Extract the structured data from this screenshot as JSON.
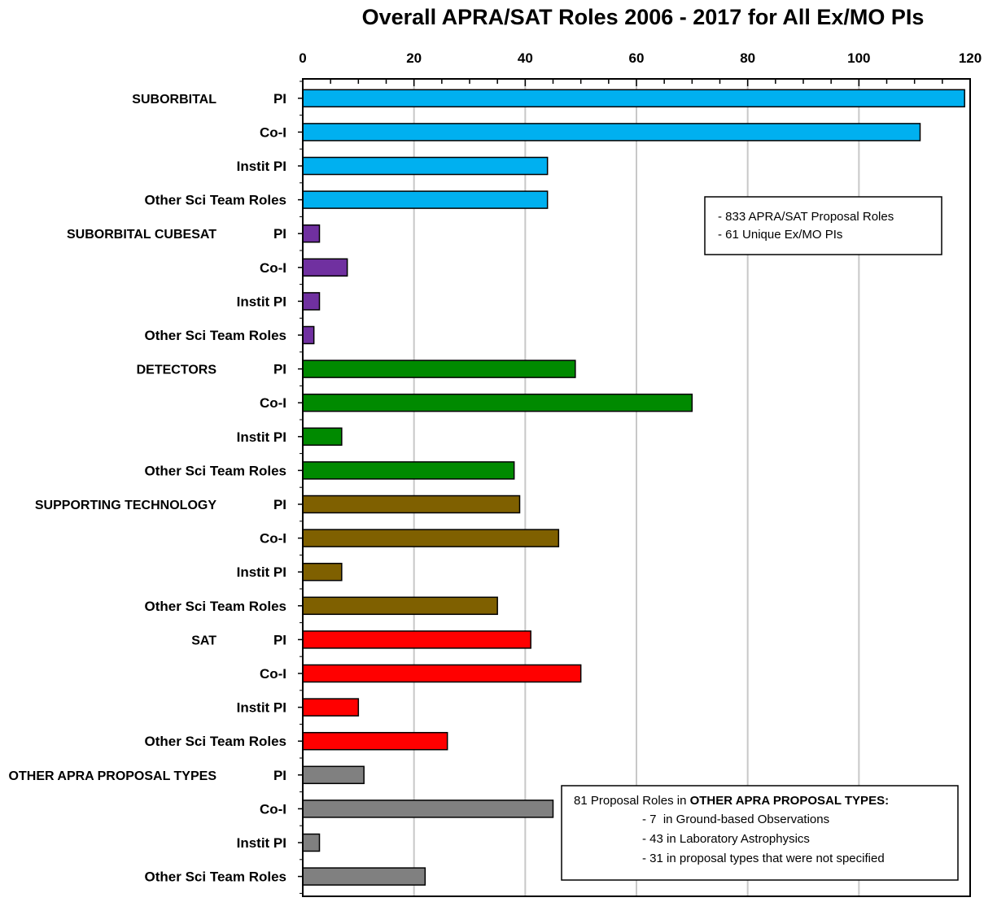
{
  "chart_data": {
    "type": "bar",
    "orientation": "horizontal",
    "title": "Overall APRA/SAT Roles 2006 - 2017 for All Ex/MO PIs",
    "xlim": [
      0,
      120
    ],
    "x_ticks": [
      "0",
      "20",
      "40",
      "60",
      "80",
      "100",
      "120"
    ],
    "grid": true,
    "groups": [
      {
        "name": "SUBORBITAL",
        "color": "#00b0f0"
      },
      {
        "name": "SUBORBITAL CUBESAT",
        "color": "#7030a0"
      },
      {
        "name": "DETECTORS",
        "color": "#008a00"
      },
      {
        "name": "SUPPORTING TECHNOLOGY",
        "color": "#7f6000"
      },
      {
        "name": "SAT",
        "color": "#ff0000"
      },
      {
        "name": "OTHER APRA PROPOSAL TYPES",
        "color": "#808080"
      }
    ],
    "roles": [
      "PI",
      "Co-I",
      "Instit PI",
      "Other Sci Team Roles"
    ],
    "bars": [
      {
        "group": 0,
        "role": "PI",
        "value": 119
      },
      {
        "group": 0,
        "role": "Co-I",
        "value": 111
      },
      {
        "group": 0,
        "role": "Instit PI",
        "value": 44
      },
      {
        "group": 0,
        "role": "Other Sci Team Roles",
        "value": 44
      },
      {
        "group": 1,
        "role": "PI",
        "value": 3
      },
      {
        "group": 1,
        "role": "Co-I",
        "value": 8
      },
      {
        "group": 1,
        "role": "Instit PI",
        "value": 3
      },
      {
        "group": 1,
        "role": "Other Sci Team Roles",
        "value": 2
      },
      {
        "group": 2,
        "role": "PI",
        "value": 49
      },
      {
        "group": 2,
        "role": "Co-I",
        "value": 70
      },
      {
        "group": 2,
        "role": "Instit PI",
        "value": 7
      },
      {
        "group": 2,
        "role": "Other Sci Team Roles",
        "value": 38
      },
      {
        "group": 3,
        "role": "PI",
        "value": 39
      },
      {
        "group": 3,
        "role": "Co-I",
        "value": 46
      },
      {
        "group": 3,
        "role": "Instit PI",
        "value": 7
      },
      {
        "group": 3,
        "role": "Other Sci Team Roles",
        "value": 35
      },
      {
        "group": 4,
        "role": "PI",
        "value": 41
      },
      {
        "group": 4,
        "role": "Co-I",
        "value": 50
      },
      {
        "group": 4,
        "role": "Instit PI",
        "value": 10
      },
      {
        "group": 4,
        "role": "Other Sci Team Roles",
        "value": 26
      },
      {
        "group": 5,
        "role": "PI",
        "value": 11
      },
      {
        "group": 5,
        "role": "Co-I",
        "value": 45
      },
      {
        "group": 5,
        "role": "Instit PI",
        "value": 3
      },
      {
        "group": 5,
        "role": "Other Sci Team Roles",
        "value": 22
      }
    ],
    "annotations": {
      "summary": [
        "- 833 APRA/SAT Proposal Roles",
        "- 61 Unique Ex/MO PIs"
      ],
      "other_types": {
        "prefix": "81 Proposal Roles in ",
        "bold": "OTHER APRA PROPOSAL TYPES:",
        "items": [
          "- 7  in Ground-based Observations",
          "- 43 in Laboratory Astrophysics",
          "- 31 in proposal types that were not specified"
        ]
      }
    }
  }
}
